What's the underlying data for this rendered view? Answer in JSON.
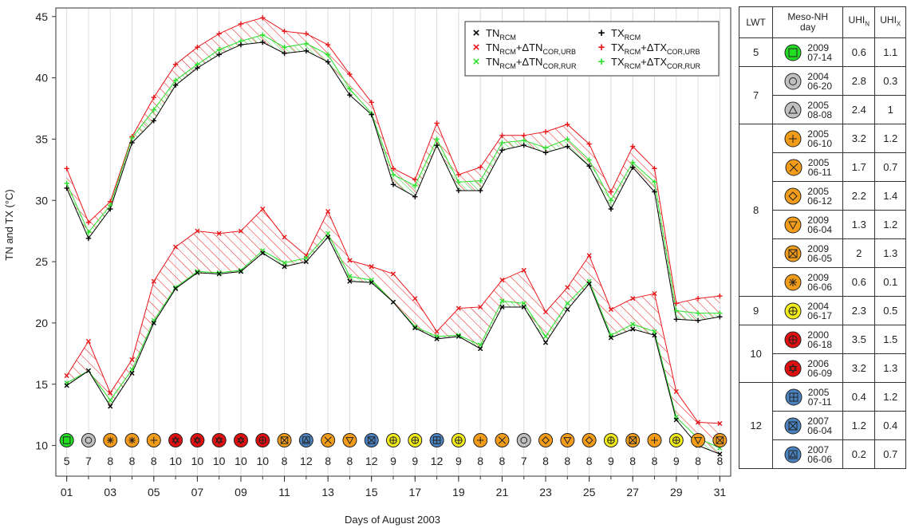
{
  "chart_data": {
    "type": "line",
    "xlabel": "Days of August 2003",
    "ylabel": "TN and TX (°C)",
    "x": [
      1,
      2,
      3,
      4,
      5,
      6,
      7,
      8,
      9,
      10,
      11,
      12,
      13,
      14,
      15,
      16,
      17,
      18,
      19,
      20,
      21,
      22,
      23,
      24,
      25,
      26,
      27,
      28,
      29,
      30,
      31
    ],
    "x_ticks": [
      1,
      3,
      5,
      7,
      9,
      11,
      13,
      15,
      17,
      19,
      21,
      23,
      25,
      27,
      29,
      31
    ],
    "x_tick_labels": [
      "01",
      "03",
      "05",
      "07",
      "09",
      "11",
      "13",
      "15",
      "17",
      "19",
      "21",
      "23",
      "25",
      "27",
      "29",
      "31"
    ],
    "xlim": [
      0.5,
      31.5
    ],
    "ylim": [
      7.5,
      45.7
    ],
    "y_ticks": [
      10,
      15,
      20,
      25,
      30,
      35,
      40,
      45
    ],
    "grid": "vertical",
    "legend_position": "top-right",
    "series": [
      {
        "name": "TN_RCM",
        "marker": "x",
        "color": "#000000",
        "values": [
          14.9,
          16.1,
          13.2,
          15.9,
          20.0,
          22.8,
          24.1,
          24.0,
          24.2,
          25.7,
          24.6,
          25.0,
          27.0,
          23.4,
          23.3,
          21.7,
          19.6,
          18.7,
          18.9,
          17.9,
          21.3,
          21.3,
          18.4,
          21.1,
          23.2,
          18.8,
          19.5,
          19.0,
          12.1,
          10.0,
          9.3
        ]
      },
      {
        "name": "TN_RCM+ΔTN_COR,URB",
        "marker": "x",
        "color": "#e8161a",
        "values": [
          15.7,
          18.5,
          14.3,
          17.0,
          23.4,
          26.2,
          27.5,
          27.3,
          27.5,
          29.3,
          27.0,
          25.5,
          29.1,
          25.1,
          24.6,
          24.0,
          22.0,
          19.3,
          21.2,
          21.3,
          23.5,
          24.3,
          20.9,
          22.9,
          25.5,
          21.1,
          22.0,
          22.4,
          14.4,
          11.9,
          11.8
        ]
      },
      {
        "name": "TN_RCM+ΔTN_COR,RUR",
        "marker": "x",
        "color": "#2ee02e",
        "values": [
          15.1,
          16.1,
          13.7,
          16.2,
          20.2,
          22.9,
          24.2,
          24.1,
          24.3,
          25.9,
          24.9,
          25.3,
          27.3,
          23.8,
          23.5,
          21.7,
          19.7,
          18.9,
          19.0,
          18.2,
          21.8,
          21.6,
          18.9,
          21.6,
          23.4,
          19.0,
          19.9,
          19.3,
          12.3,
          10.6,
          9.8
        ]
      },
      {
        "name": "TX_RCM",
        "marker": "+",
        "color": "#000000",
        "values": [
          31.0,
          26.9,
          29.3,
          34.7,
          36.5,
          39.4,
          40.8,
          41.9,
          42.7,
          42.9,
          42.0,
          42.2,
          41.3,
          38.6,
          37.0,
          31.3,
          30.3,
          34.5,
          30.8,
          30.8,
          34.1,
          34.5,
          33.9,
          34.4,
          32.8,
          29.3,
          32.7,
          30.7,
          20.3,
          20.2,
          20.5
        ]
      },
      {
        "name": "TX_RCM+ΔTX_COR,URB",
        "marker": "+",
        "color": "#e8161a",
        "values": [
          32.6,
          28.2,
          29.9,
          35.2,
          38.4,
          41.1,
          42.5,
          43.6,
          44.4,
          44.9,
          43.8,
          43.6,
          42.7,
          40.3,
          38.0,
          32.6,
          31.7,
          36.3,
          32.1,
          32.7,
          35.3,
          35.3,
          35.6,
          36.2,
          34.6,
          30.7,
          34.4,
          32.6,
          21.6,
          22.0,
          22.2
        ]
      },
      {
        "name": "TX_RCM+ΔTX_COR,RUR",
        "marker": "+",
        "color": "#2ee02e",
        "values": [
          31.4,
          27.4,
          29.6,
          35.1,
          37.4,
          39.8,
          41.1,
          42.3,
          43.0,
          43.5,
          42.5,
          42.8,
          41.9,
          39.1,
          37.1,
          32.1,
          31.2,
          35.0,
          31.5,
          31.6,
          34.7,
          34.9,
          34.3,
          35.0,
          33.3,
          30.0,
          33.1,
          31.5,
          21.0,
          20.8,
          20.8
        ]
      }
    ],
    "hatch_color_urban": "#e8161a",
    "hatch_color_rural": "#2ee02e",
    "lwt_row": {
      "days": [
        1,
        2,
        3,
        4,
        5,
        6,
        7,
        8,
        9,
        10,
        11,
        12,
        13,
        14,
        15,
        16,
        17,
        18,
        19,
        20,
        21,
        22,
        23,
        24,
        25,
        26,
        27,
        28,
        29,
        30,
        31
      ],
      "lwt": [
        "5",
        "7",
        "8",
        "8",
        "8",
        "10",
        "10",
        "10",
        "10",
        "10",
        "8",
        "12",
        "8",
        "8",
        "12",
        "9",
        "9",
        "12",
        "9",
        "8",
        "8",
        "7",
        "8",
        "8",
        "8",
        "9",
        "8",
        "8",
        "9",
        "8",
        "8"
      ],
      "symbols": [
        "square",
        "circle",
        "asterisk",
        "asterisk",
        "plus",
        "david",
        "david",
        "david",
        "david",
        "circle-plus",
        "box-x",
        "box-triangle",
        "cross",
        "triangle-down",
        "box-x",
        "circle-plus",
        "circle-plus",
        "box-plus",
        "circle-plus",
        "plus",
        "cross",
        "circle",
        "diamond",
        "triangle-down",
        "diamond",
        "circle-plus",
        "box-x",
        "plus",
        "circle-plus",
        "triangle-down",
        "box-x"
      ]
    }
  },
  "lwt_colors": {
    "5": "#22dd22",
    "7": "#c0c0c0",
    "8": "#f39c1a",
    "9": "#f2ec1a",
    "10": "#e01010",
    "12": "#4a82c0"
  },
  "legend": {
    "col1": [
      {
        "marker": "×",
        "color": "#000000",
        "base": "TN",
        "sub": "RCM",
        "extra": ""
      },
      {
        "marker": "×",
        "color": "#e8161a",
        "base": "TN",
        "sub": "RCM",
        "extra": "+ΔTN",
        "extra_sub": "COR,URB"
      },
      {
        "marker": "×",
        "color": "#2ee02e",
        "base": "TN",
        "sub": "RCM",
        "extra": "+ΔTN",
        "extra_sub": "COR,RUR"
      }
    ],
    "col2": [
      {
        "marker": "+",
        "color": "#000000",
        "base": "TX",
        "sub": "RCM",
        "extra": ""
      },
      {
        "marker": "+",
        "color": "#e8161a",
        "base": "TX",
        "sub": "RCM",
        "extra": "+ΔTX",
        "extra_sub": "COR,URB"
      },
      {
        "marker": "+",
        "color": "#2ee02e",
        "base": "TX",
        "sub": "RCM",
        "extra": "+ΔTX",
        "extra_sub": "COR,RUR"
      }
    ]
  },
  "table": {
    "headers": {
      "lwt": "LWT",
      "day": "Meso-NH day",
      "uhin_base": "UHI",
      "uhin_sub": "N",
      "uhix_base": "UHI",
      "uhix_sub": "X"
    },
    "groups": [
      {
        "lwt": "5",
        "rows": [
          {
            "symbol": "square",
            "d1": "2009",
            "d2": "07-14",
            "uhin": "0.6",
            "uhix": "1.1"
          }
        ]
      },
      {
        "lwt": "7",
        "rows": [
          {
            "symbol": "circle",
            "d1": "2004",
            "d2": "06-20",
            "uhin": "2.8",
            "uhix": "0.3"
          },
          {
            "symbol": "triangle",
            "d1": "2005",
            "d2": "08-08",
            "uhin": "2.4",
            "uhix": "1"
          }
        ]
      },
      {
        "lwt": "8",
        "rows": [
          {
            "symbol": "plus",
            "d1": "2005",
            "d2": "06-10",
            "uhin": "3.2",
            "uhix": "1.2"
          },
          {
            "symbol": "cross",
            "d1": "2005",
            "d2": "06-11",
            "uhin": "1.7",
            "uhix": "0.7"
          },
          {
            "symbol": "diamond",
            "d1": "2005",
            "d2": "06-12",
            "uhin": "2.2",
            "uhix": "1.4"
          },
          {
            "symbol": "triangle-down",
            "d1": "2009",
            "d2": "06-04",
            "uhin": "1.3",
            "uhix": "1.2"
          },
          {
            "symbol": "box-x",
            "d1": "2009",
            "d2": "06-05",
            "uhin": "2",
            "uhix": "1.3"
          },
          {
            "symbol": "asterisk",
            "d1": "2009",
            "d2": "06-06",
            "uhin": "0.6",
            "uhix": "0.1"
          }
        ]
      },
      {
        "lwt": "9",
        "rows": [
          {
            "symbol": "circle-plus",
            "d1": "2004",
            "d2": "06-17",
            "uhin": "2.3",
            "uhix": "0.5"
          }
        ]
      },
      {
        "lwt": "10",
        "rows": [
          {
            "symbol": "circle-plus",
            "d1": "2000",
            "d2": "06-18",
            "uhin": "3.5",
            "uhix": "1.5"
          },
          {
            "symbol": "david",
            "d1": "2006",
            "d2": "06-09",
            "uhin": "3.2",
            "uhix": "1.3"
          }
        ]
      },
      {
        "lwt": "12",
        "rows": [
          {
            "symbol": "box-plus",
            "d1": "2005",
            "d2": "07-11",
            "uhin": "0.4",
            "uhix": "1.2"
          },
          {
            "symbol": "box-x",
            "d1": "2007",
            "d2": "06-04",
            "uhin": "1.2",
            "uhix": "0.4"
          },
          {
            "symbol": "box-triangle",
            "d1": "2007",
            "d2": "06-06",
            "uhin": "0.2",
            "uhix": "0.7"
          }
        ]
      }
    ]
  }
}
